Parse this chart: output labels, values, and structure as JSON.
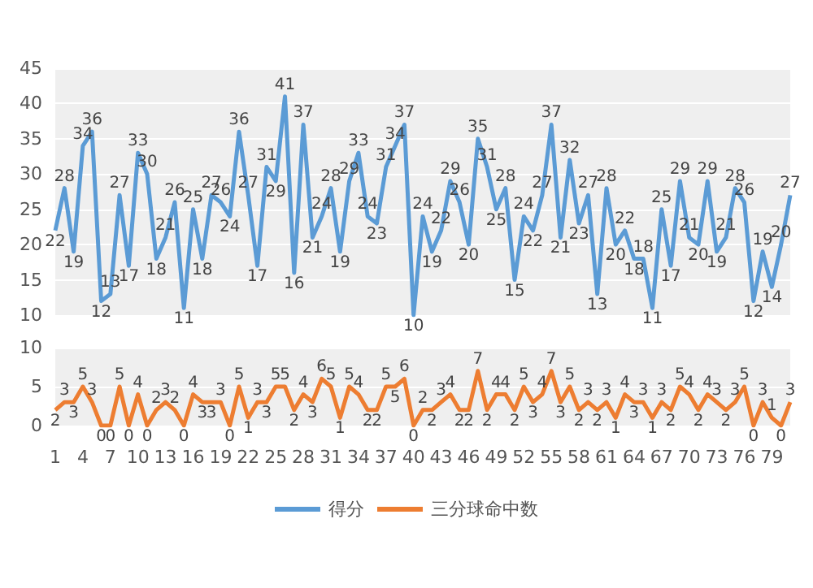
{
  "chart_data": [
    {
      "type": "line",
      "categories": [
        "1",
        null,
        null,
        "4",
        null,
        null,
        "7",
        null,
        null,
        "10",
        null,
        null,
        "13",
        null,
        null,
        "16",
        null,
        null,
        "19",
        null,
        null,
        "22",
        null,
        null,
        "25",
        null,
        null,
        "28",
        null,
        null,
        "31",
        null,
        null,
        "34",
        null,
        null,
        "37",
        null,
        null,
        "40",
        null,
        null,
        "43",
        null,
        null,
        "46",
        null,
        null,
        "49",
        null,
        null,
        "52",
        null,
        null,
        "55",
        null,
        null,
        "58",
        null,
        null,
        "61",
        null,
        null,
        "64",
        null,
        null,
        "67",
        null,
        null,
        "70",
        null,
        null,
        "73",
        null,
        null,
        "76",
        null,
        null,
        "79",
        null,
        null
      ],
      "series": [
        {
          "name": "得分",
          "color": "#5b9bd5",
          "values": [
            22,
            28,
            19,
            34,
            36,
            12,
            13,
            27,
            17,
            33,
            30,
            18,
            21,
            26,
            11,
            25,
            18,
            27,
            26,
            24,
            36,
            27,
            17,
            31,
            29,
            41,
            16,
            37,
            21,
            24,
            28,
            19,
            29,
            33,
            24,
            23,
            31,
            34,
            37,
            10,
            24,
            19,
            22,
            29,
            26,
            20,
            35,
            31,
            25,
            28,
            15,
            24,
            22,
            27,
            37,
            21,
            32,
            23,
            27,
            13,
            28,
            20,
            22,
            18,
            18,
            11,
            25,
            17,
            29,
            21,
            20,
            29,
            19,
            21,
            28,
            26,
            12,
            19,
            14,
            20,
            27
          ]
        }
      ],
      "ylim": [
        10,
        45
      ],
      "yticks": [
        10,
        15,
        20,
        25,
        30,
        35,
        40,
        45
      ],
      "grid": "y",
      "tick_labels": "y",
      "data_labels": true,
      "legend": "bottom",
      "marker": "none",
      "line_style": "solid"
    },
    {
      "type": "line",
      "categories": [
        "1",
        null,
        null,
        "4",
        null,
        null,
        "7",
        null,
        null,
        "10",
        null,
        null,
        "13",
        null,
        null,
        "16",
        null,
        null,
        "19",
        null,
        null,
        "22",
        null,
        null,
        "25",
        null,
        null,
        "28",
        null,
        null,
        "31",
        null,
        null,
        "34",
        null,
        null,
        "37",
        null,
        null,
        "40",
        null,
        null,
        "43",
        null,
        null,
        "46",
        null,
        null,
        "49",
        null,
        null,
        "52",
        null,
        null,
        "55",
        null,
        null,
        "58",
        null,
        null,
        "61",
        null,
        null,
        "64",
        null,
        null,
        "67",
        null,
        null,
        "70",
        null,
        null,
        "73",
        null,
        null,
        "76",
        null,
        null,
        "79",
        null,
        null
      ],
      "series": [
        {
          "name": "三分球命中数",
          "color": "#ed7d31",
          "values": [
            2,
            3,
            3,
            5,
            3,
            0,
            0,
            5,
            0,
            4,
            0,
            2,
            3,
            2,
            0,
            4,
            3,
            3,
            3,
            0,
            5,
            1,
            3,
            3,
            5,
            5,
            2,
            4,
            3,
            6,
            5,
            1,
            5,
            4,
            2,
            2,
            5,
            5,
            6,
            0,
            2,
            2,
            3,
            4,
            2,
            2,
            7,
            2,
            4,
            4,
            2,
            5,
            3,
            4,
            7,
            3,
            5,
            2,
            3,
            2,
            3,
            1,
            4,
            3,
            3,
            1,
            3,
            2,
            5,
            4,
            2,
            4,
            3,
            2,
            3,
            5,
            0,
            3,
            1,
            0,
            3
          ]
        }
      ],
      "ylim": [
        0,
        10
      ],
      "yticks": [
        0,
        5,
        10
      ],
      "grid": "y",
      "data_labels": true,
      "legend": "bottom",
      "marker": "none",
      "line_style": "solid"
    }
  ]
}
